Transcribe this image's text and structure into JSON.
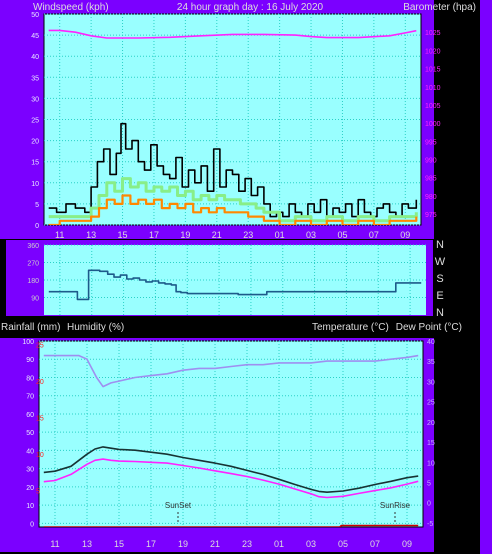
{
  "colors": {
    "page_bg": "#000000",
    "frame": "#7b00ff",
    "plot_bg": "#99ffff",
    "grid": "#2bd1c7",
    "label_text": "#dddddd",
    "pink_axis": "#ff22ff",
    "red_axis": "#ff2020",
    "dark_axis": "#8a2be2"
  },
  "header": {
    "wind_title": "Windspeed (kph)",
    "date_title": "24 hour graph day : 16 July 2020",
    "baro_title": "Barometer (hpa)"
  },
  "compass": [
    "N",
    "W",
    "S",
    "E",
    "N"
  ],
  "mid_header": {
    "rain": "Rainfall (mm)",
    "humidity": "Humidity (%)",
    "temp": "Temperature (°C)",
    "dew": "Dew Point (°C)"
  },
  "sun": {
    "set_label": "SunSet",
    "rise_label": "SunRise"
  },
  "chart_data": [
    {
      "type": "line",
      "title": "Windspeed (kph) / Barometer (hpa)",
      "x_ticks": [
        "11",
        "13",
        "15",
        "17",
        "19",
        "21",
        "23",
        "01",
        "03",
        "05",
        "07",
        "09"
      ],
      "xlim": [
        10,
        34
      ],
      "ylabel_left": "Windspeed (kph)",
      "ylim_left": [
        0,
        50
      ],
      "yticks_left": [
        "0",
        "5",
        "10",
        "15",
        "20",
        "25",
        "30",
        "35",
        "40",
        "45",
        "50"
      ],
      "ylabel_right": "Barometer (hpa)",
      "ylim_right": [
        972,
        1030
      ],
      "yticks_right": [
        "975",
        "980",
        "985",
        "990",
        "995",
        "1000",
        "1005",
        "1010",
        "1015",
        "1020",
        "1025"
      ],
      "grid": true,
      "series": [
        {
          "name": "Barometer",
          "color": "#ff22ff",
          "axis": "right",
          "x": [
            10.3,
            11,
            12,
            13,
            14,
            16,
            18,
            20,
            22,
            24,
            26,
            27,
            28,
            30,
            32,
            33,
            33.7
          ],
          "y": [
            1025.5,
            1025.5,
            1025,
            1024,
            1023.4,
            1023.4,
            1023.6,
            1024,
            1024.4,
            1024.4,
            1024.2,
            1023.8,
            1023.5,
            1023.5,
            1024,
            1024.8,
            1025.4
          ]
        },
        {
          "name": "Wind gust",
          "color": "#000000",
          "axis": "left",
          "x": [
            10.3,
            10.8,
            11.4,
            12,
            12.6,
            13,
            13.4,
            13.8,
            14.2,
            14.6,
            14.9,
            15.2,
            15.6,
            16,
            16.4,
            16.8,
            17.2,
            17.6,
            18,
            18.4,
            18.8,
            19.2,
            19.6,
            20,
            20.4,
            20.8,
            21.2,
            21.6,
            22,
            22.4,
            22.8,
            23.2,
            23.6,
            24,
            24.4,
            24.8,
            25.2,
            25.6,
            26,
            26.4,
            26.8,
            27.2,
            27.6,
            28,
            28.4,
            28.8,
            29.2,
            29.6,
            30,
            30.4,
            30.8,
            31.2,
            31.6,
            32,
            32.4,
            32.8,
            33.2,
            33.7
          ],
          "y": [
            4,
            3,
            5,
            4,
            3,
            9,
            15,
            18,
            12,
            17,
            24,
            18,
            20,
            15,
            13,
            19,
            14,
            12,
            11,
            16,
            9,
            13,
            10,
            14,
            8,
            18,
            9,
            13,
            12,
            8,
            11,
            7,
            9,
            5,
            2,
            3,
            2,
            5,
            3,
            2,
            5,
            3,
            6,
            2,
            4,
            3,
            5,
            2,
            6,
            3,
            2,
            4,
            5,
            3,
            2,
            5,
            4,
            6
          ]
        },
        {
          "name": "Wind average",
          "color": "#88ee88",
          "axis": "left",
          "x": [
            10.3,
            11,
            12,
            13,
            13.5,
            14,
            14.5,
            15,
            15.5,
            16,
            16.5,
            17,
            17.5,
            18,
            18.5,
            19,
            19.5,
            20,
            20.5,
            21,
            21.5,
            22,
            22.5,
            23,
            23.5,
            24,
            25,
            26,
            27,
            28,
            29,
            30,
            31,
            32,
            33,
            33.7
          ],
          "y": [
            2,
            2,
            2,
            4,
            7,
            10,
            8,
            11,
            9,
            10,
            8,
            9,
            8,
            9,
            7,
            8,
            6,
            7,
            6,
            7,
            6,
            6,
            5,
            5,
            4,
            3,
            1,
            2,
            1,
            2,
            1,
            2,
            1,
            2,
            2,
            3
          ]
        },
        {
          "name": "Wind speed",
          "color": "#ff8800",
          "axis": "left",
          "x": [
            10.3,
            11,
            12,
            13,
            13.5,
            14,
            14.5,
            15,
            15.5,
            16,
            16.5,
            17,
            17.5,
            18,
            18.5,
            19,
            19.5,
            20,
            20.5,
            21,
            21.5,
            22,
            22.5,
            23,
            23.5,
            24,
            25,
            26,
            27,
            28,
            29,
            30,
            31,
            32,
            33,
            33.7
          ],
          "y": [
            0,
            1,
            1,
            2,
            4,
            6,
            5,
            7,
            5,
            6,
            5,
            6,
            4,
            5,
            4,
            5,
            3,
            4,
            3,
            4,
            3,
            3,
            3,
            2,
            2,
            1,
            0,
            1,
            0,
            1,
            0,
            1,
            0,
            1,
            1,
            2
          ]
        }
      ]
    },
    {
      "type": "line",
      "title": "Wind direction",
      "x_ticks": [],
      "xlim": [
        10,
        34
      ],
      "ylim": [
        0,
        360
      ],
      "yticks_left": [
        "90",
        "180",
        "270",
        "360"
      ],
      "grid": true,
      "series": [
        {
          "name": "Wind direction",
          "color": "#1d5a8a",
          "axis": "left",
          "x": [
            10.3,
            12.0,
            12.1,
            12.8,
            13.5,
            14.0,
            14.4,
            14.8,
            15.2,
            15.6,
            16.0,
            16.4,
            16.8,
            17.2,
            17.6,
            18.0,
            18.3,
            18.6,
            19.0,
            20.0,
            21.0,
            22.0,
            22.2,
            24.0,
            26.0,
            28.0,
            30.0,
            32.0,
            32.1,
            33.7
          ],
          "y": [
            120,
            120,
            80,
            230,
            225,
            210,
            195,
            205,
            185,
            190,
            180,
            170,
            175,
            165,
            160,
            155,
            120,
            115,
            110,
            110,
            110,
            110,
            105,
            120,
            120,
            120,
            120,
            120,
            165,
            165
          ]
        }
      ]
    },
    {
      "type": "line",
      "title": "Rainfall / Humidity / Temperature / Dew Point",
      "x_ticks": [
        "11",
        "13",
        "15",
        "17",
        "19",
        "21",
        "23",
        "01",
        "03",
        "05",
        "07",
        "09"
      ],
      "xlim": [
        10,
        34
      ],
      "ylabel_left": "Humidity (%)",
      "ylim_left": [
        -2,
        100
      ],
      "yticks_left": [
        "0",
        "10",
        "20",
        "30",
        "40",
        "50",
        "60",
        "70",
        "80",
        "90",
        "100"
      ],
      "yticks_red": [
        "5",
        "10",
        "15",
        "20",
        "25"
      ],
      "ylabel_right": "Temperature (°C)",
      "ylim_right": [
        -6,
        40
      ],
      "yticks_right": [
        "-5",
        "0",
        "5",
        "10",
        "15",
        "20",
        "25",
        "30",
        "35",
        "40"
      ],
      "grid": true,
      "series": [
        {
          "name": "Humidity",
          "color": "#9f8ff0",
          "axis": "left",
          "x": [
            10.3,
            11.5,
            12.5,
            13.0,
            13.3,
            13.6,
            14.0,
            14.5,
            15.0,
            16.0,
            17.0,
            18.0,
            19.0,
            20.0,
            21.0,
            22.0,
            23.0,
            24.0,
            25.0,
            26.0,
            27.0,
            28.0,
            29.0,
            30.0,
            31.0,
            32.0,
            33.0,
            33.7
          ],
          "y": [
            92,
            92,
            92,
            90,
            85,
            80,
            75,
            77,
            78,
            80,
            81,
            82,
            84,
            85,
            85,
            86,
            87,
            87,
            88,
            88,
            88,
            89,
            89,
            89,
            89,
            90,
            91,
            92
          ]
        },
        {
          "name": "Temperature",
          "color": "#173333",
          "axis": "right",
          "x": [
            10.3,
            11,
            12,
            13,
            13.5,
            14,
            14.5,
            15,
            16,
            17,
            18,
            19,
            20,
            21,
            22,
            23,
            24,
            25,
            26,
            27,
            27.5,
            28,
            29,
            30,
            31,
            32,
            33,
            33.7
          ],
          "y": [
            7.5,
            7.8,
            9,
            12,
            13.3,
            13.8,
            13.5,
            13.2,
            13,
            12.5,
            12,
            11.2,
            10.5,
            9.8,
            9.0,
            8.0,
            7.0,
            5.8,
            4.5,
            3.3,
            2.8,
            2.6,
            2.9,
            3.6,
            4.5,
            5.3,
            6.2,
            6.6
          ]
        },
        {
          "name": "Dew Point",
          "color": "#ff22ff",
          "axis": "right",
          "x": [
            10.3,
            11,
            12,
            13,
            13.5,
            14,
            14.5,
            15,
            16,
            17,
            18,
            19,
            20,
            21,
            22,
            23,
            24,
            25,
            26,
            27,
            27.5,
            28,
            29,
            30,
            31,
            32,
            33,
            33.7
          ],
          "y": [
            5.2,
            5.5,
            7,
            9.5,
            10.5,
            10.8,
            10.5,
            10.3,
            10.2,
            10,
            9.8,
            9.2,
            8.6,
            7.9,
            7.2,
            6.5,
            5.6,
            4.6,
            3.4,
            2.2,
            1.5,
            1.3,
            1.6,
            2.3,
            3.0,
            3.7,
            4.6,
            5.3
          ]
        },
        {
          "name": "Rainfall",
          "color": "#cc0000",
          "axis": "red",
          "x": [
            10.3,
            28.8,
            28.9,
            33.7
          ],
          "y": [
            0,
            0,
            0.2,
            0.2
          ]
        }
      ]
    }
  ]
}
